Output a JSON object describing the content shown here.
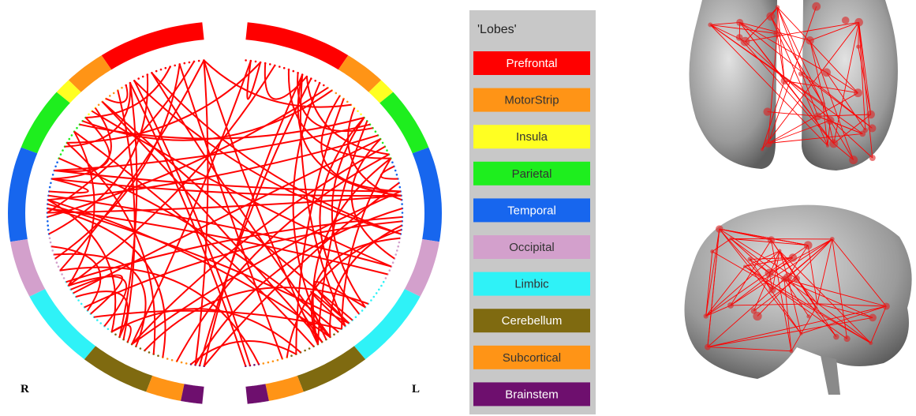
{
  "legend": {
    "title": "'Lobes'",
    "items": [
      {
        "label": "Prefrontal",
        "color": "#ff0000"
      },
      {
        "label": "MotorStrip",
        "color": "#ff9416"
      },
      {
        "label": "Insula",
        "color": "#ffff22"
      },
      {
        "label": "Parietal",
        "color": "#1eee1e"
      },
      {
        "label": "Temporal",
        "color": "#1766ee"
      },
      {
        "label": "Occipital",
        "color": "#d3a0cc"
      },
      {
        "label": "Limbic",
        "color": "#2ff2f7"
      },
      {
        "label": "Cerebellum",
        "color": "#7f6a10"
      },
      {
        "label": "Subcortical",
        "color": "#ff9416"
      },
      {
        "label": "Brainstem",
        "color": "#6e0f6e"
      }
    ]
  },
  "hemispheres": {
    "right": "R",
    "left": "L"
  }
}
